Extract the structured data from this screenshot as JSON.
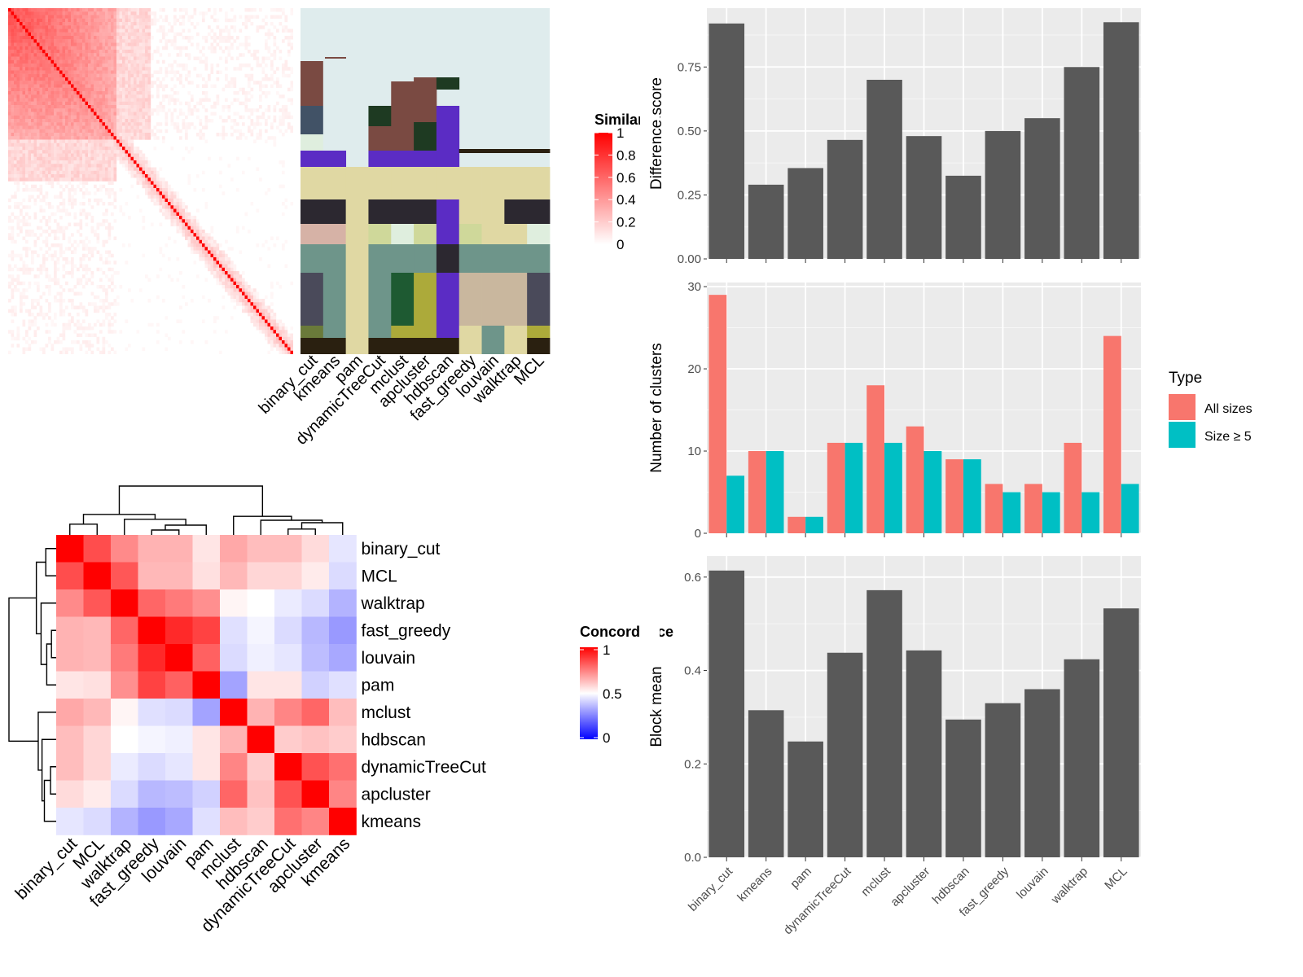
{
  "similarity_legend": {
    "title": "Similarity",
    "ticks": [
      "1",
      "0.8",
      "0.6",
      "0.4",
      "0.2",
      "0"
    ]
  },
  "concordance_legend": {
    "title": "Concordance",
    "ticks": [
      "1",
      "0.5",
      "0"
    ]
  },
  "type_legend": {
    "title": "Type",
    "items": [
      {
        "label": "All sizes",
        "color": "#F8766D"
      },
      {
        "label": "Size ≥ 5",
        "color": "#00BFC4"
      }
    ]
  },
  "chart_data": [
    {
      "type": "heatmap",
      "name": "similarity-matrix",
      "colors": {
        "high": "#ff0000",
        "low": "#ffffff"
      },
      "legend": "Similarity",
      "scale": [
        0,
        1
      ]
    },
    {
      "type": "heatmap",
      "name": "cluster-assignments",
      "columns": [
        "binary_cut",
        "kmeans",
        "pam",
        "dynamicTreeCut",
        "mclust",
        "apcluster",
        "hdbscan",
        "fast_greedy",
        "louvain",
        "walktrap",
        "MCL"
      ]
    },
    {
      "type": "heatmap",
      "name": "concordance",
      "labels": [
        "binary_cut",
        "MCL",
        "walktrap",
        "fast_greedy",
        "louvain",
        "pam",
        "mclust",
        "hdbscan",
        "dynamicTreeCut",
        "apcluster",
        "kmeans"
      ],
      "values": [
        [
          1.0,
          0.85,
          0.73,
          0.65,
          0.65,
          0.55,
          0.67,
          0.63,
          0.63,
          0.57,
          0.45
        ],
        [
          0.85,
          1.0,
          0.83,
          0.64,
          0.64,
          0.56,
          0.64,
          0.58,
          0.58,
          0.54,
          0.43
        ],
        [
          0.73,
          0.83,
          1.0,
          0.8,
          0.76,
          0.72,
          0.52,
          0.5,
          0.46,
          0.43,
          0.35
        ],
        [
          0.65,
          0.64,
          0.8,
          1.0,
          0.92,
          0.87,
          0.44,
          0.48,
          0.43,
          0.36,
          0.3
        ],
        [
          0.65,
          0.64,
          0.76,
          0.92,
          1.0,
          0.81,
          0.43,
          0.47,
          0.45,
          0.37,
          0.33
        ],
        [
          0.55,
          0.56,
          0.72,
          0.87,
          0.81,
          1.0,
          0.32,
          0.55,
          0.55,
          0.41,
          0.44
        ],
        [
          0.67,
          0.64,
          0.52,
          0.44,
          0.43,
          0.32,
          1.0,
          0.65,
          0.74,
          0.8,
          0.63
        ],
        [
          0.63,
          0.58,
          0.5,
          0.48,
          0.47,
          0.55,
          0.65,
          1.0,
          0.6,
          0.62,
          0.6
        ],
        [
          0.63,
          0.58,
          0.46,
          0.43,
          0.45,
          0.55,
          0.74,
          0.6,
          1.0,
          0.84,
          0.78
        ],
        [
          0.57,
          0.54,
          0.43,
          0.36,
          0.37,
          0.41,
          0.8,
          0.62,
          0.84,
          1.0,
          0.74
        ],
        [
          0.45,
          0.43,
          0.35,
          0.3,
          0.33,
          0.44,
          0.63,
          0.6,
          0.78,
          0.74,
          1.0
        ]
      ],
      "scale": [
        0,
        0.5,
        1
      ],
      "colors": {
        "low": "#0000ff",
        "mid": "#ffffff",
        "high": "#ff0000"
      },
      "legend": "Concordance"
    },
    {
      "type": "bar",
      "name": "difference-score",
      "categories": [
        "binary_cut",
        "kmeans",
        "pam",
        "dynamicTreeCut",
        "mclust",
        "apcluster",
        "hdbscan",
        "fast_greedy",
        "louvain",
        "walktrap",
        "MCL"
      ],
      "values": [
        0.92,
        0.29,
        0.355,
        0.465,
        0.7,
        0.48,
        0.325,
        0.5,
        0.55,
        0.75,
        0.925
      ],
      "ylabel": "Difference score",
      "ylim": [
        0,
        0.98
      ],
      "yticks": [
        0.0,
        0.25,
        0.5,
        0.75
      ],
      "ytick_labels": [
        "0.00",
        "0.25",
        "0.50",
        "0.75"
      ],
      "color": "#595959"
    },
    {
      "type": "bar",
      "name": "number-of-clusters",
      "categories": [
        "binary_cut",
        "kmeans",
        "pam",
        "dynamicTreeCut",
        "mclust",
        "apcluster",
        "hdbscan",
        "fast_greedy",
        "louvain",
        "walktrap",
        "MCL"
      ],
      "series": [
        {
          "name": "All sizes",
          "values": [
            29,
            10,
            2,
            11,
            18,
            13,
            9,
            6,
            6,
            11,
            24
          ],
          "color": "#F8766D"
        },
        {
          "name": "Size ≥ 5",
          "values": [
            7,
            10,
            2,
            11,
            11,
            10,
            9,
            5,
            5,
            5,
            6
          ],
          "color": "#00BFC4"
        }
      ],
      "ylabel": "Number of clusters",
      "ylim": [
        0,
        30.5
      ],
      "yticks": [
        0,
        10,
        20,
        30
      ],
      "ytick_labels": [
        "0",
        "10",
        "20",
        "30"
      ],
      "legend_title": "Type",
      "legend_position": "right"
    },
    {
      "type": "bar",
      "name": "block-mean",
      "categories": [
        "binary_cut",
        "kmeans",
        "pam",
        "dynamicTreeCut",
        "mclust",
        "apcluster",
        "hdbscan",
        "fast_greedy",
        "louvain",
        "walktrap",
        "MCL"
      ],
      "values": [
        0.614,
        0.315,
        0.248,
        0.438,
        0.572,
        0.443,
        0.295,
        0.33,
        0.36,
        0.424,
        0.533
      ],
      "ylabel": "Block mean",
      "ylim": [
        0,
        0.645
      ],
      "yticks": [
        0.0,
        0.2,
        0.4,
        0.6
      ],
      "ytick_labels": [
        "0.0",
        "0.2",
        "0.4",
        "0.6"
      ],
      "color": "#595959"
    }
  ]
}
